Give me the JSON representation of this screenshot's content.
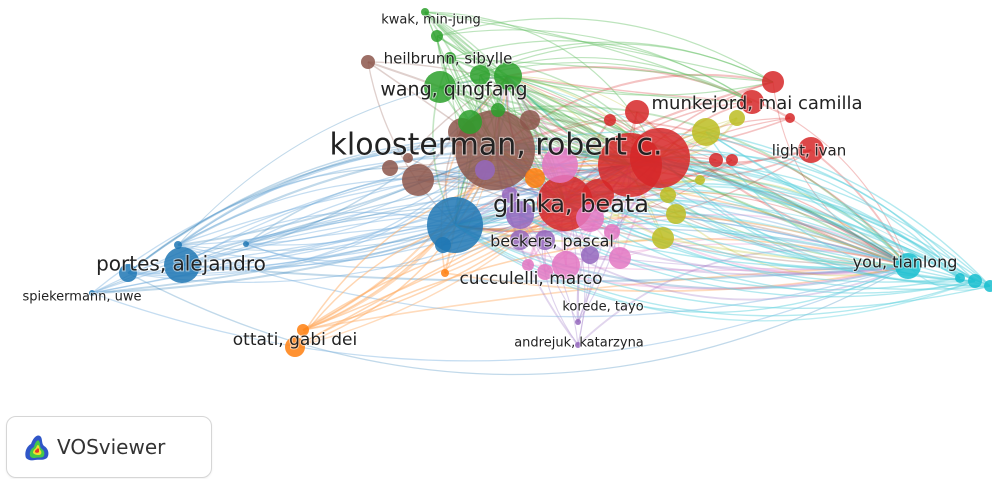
{
  "app": {
    "name": "VOSviewer",
    "logo_icon": "vosviewer-heatmap-icon"
  },
  "legend": {
    "colors": [
      "#d62728",
      "#2ca02c",
      "#1f77b4",
      "#ff7f0e",
      "#9467bd",
      "#8c564b",
      "#e377c2",
      "#bcbd22",
      "#17becf"
    ]
  },
  "authors": [
    {
      "label": "kloosterman, robert c.",
      "cluster": "brown"
    },
    {
      "label": "glinka, beata",
      "cluster": "red"
    },
    {
      "label": "wang, qingfang",
      "cluster": "green"
    },
    {
      "label": "heilbrunn, sibylle",
      "cluster": "green"
    },
    {
      "label": "kwak, min-jung",
      "cluster": "green"
    },
    {
      "label": "munkejord, mai camilla",
      "cluster": "red"
    },
    {
      "label": "light, ivan",
      "cluster": "red"
    },
    {
      "label": "portes, alejandro",
      "cluster": "blue"
    },
    {
      "label": "spiekermann, uwe",
      "cluster": "blue"
    },
    {
      "label": "beckers, pascal",
      "cluster": "purple"
    },
    {
      "label": "cucculelli, marco",
      "cluster": "pink"
    },
    {
      "label": "korede, tayo",
      "cluster": "purple"
    },
    {
      "label": "andrejuk, katarzyna",
      "cluster": "purple"
    },
    {
      "label": "ottati, gabi dei",
      "cluster": "orange"
    },
    {
      "label": "you, tianlong",
      "cluster": "cyan"
    }
  ]
}
